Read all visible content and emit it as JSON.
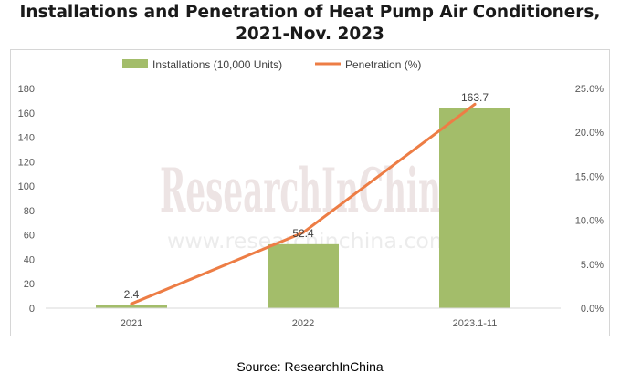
{
  "title_line1": "Installations and Penetration of Heat Pump Air Conditioners,",
  "title_line2": "2021-Nov. 2023",
  "source": "Source: ResearchInChina",
  "watermark": {
    "brand": "ResearchInChina",
    "url": "www.researchinchina.com"
  },
  "colors": {
    "bar": "#a3bd6a",
    "line": "#ed7d45",
    "axis_text": "#595959",
    "grid": "#d9d9d9",
    "watermark": "#e8dcdc"
  },
  "chart_data": {
    "type": "bar+line",
    "categories": [
      "2021",
      "2022",
      "2023.1-11"
    ],
    "series": [
      {
        "name": "Installations (10,000 Units)",
        "type": "bar",
        "axis": "left",
        "values": [
          2.4,
          52.4,
          163.7
        ],
        "labels": [
          "2.4",
          "52.4",
          "163.7"
        ]
      },
      {
        "name": "Penetration (%)",
        "type": "line",
        "axis": "right",
        "values": [
          0.5,
          8.6,
          23.2
        ]
      }
    ],
    "y_left": {
      "min": 0,
      "max": 180,
      "ticks": [
        "0",
        "20",
        "40",
        "60",
        "80",
        "100",
        "120",
        "140",
        "160",
        "180"
      ]
    },
    "y_right": {
      "min": 0,
      "max": 25,
      "ticks": [
        "0.0%",
        "5.0%",
        "10.0%",
        "15.0%",
        "20.0%",
        "25.0%"
      ]
    },
    "legend_position": "top-center",
    "grid": false
  }
}
